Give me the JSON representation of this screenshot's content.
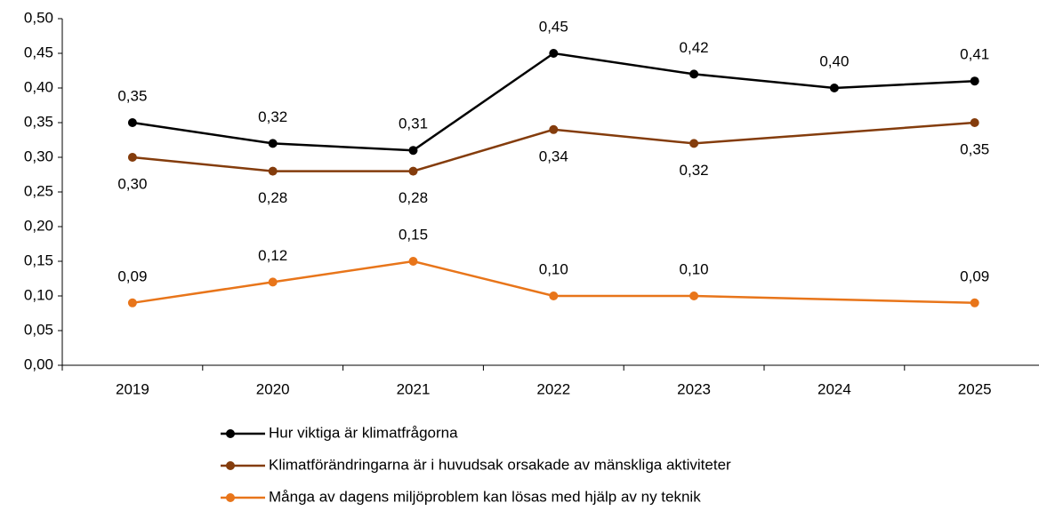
{
  "chart_data": {
    "type": "line",
    "x": [
      2019,
      2020,
      2021,
      2022,
      2023,
      2024,
      2025
    ],
    "ylim": [
      0,
      0.5
    ],
    "yticks": [
      {
        "value": 0,
        "label": "0,00"
      },
      {
        "value": 0.05,
        "label": "0,05"
      },
      {
        "value": 0.1,
        "label": "0,10"
      },
      {
        "value": 0.15,
        "label": "0,15"
      },
      {
        "value": 0.2,
        "label": "0,20"
      },
      {
        "value": 0.25,
        "label": "0,25"
      },
      {
        "value": 0.3,
        "label": "0,30"
      },
      {
        "value": 0.35,
        "label": "0,35"
      },
      {
        "value": 0.4,
        "label": "0,40"
      },
      {
        "value": 0.45,
        "label": "0,45"
      },
      {
        "value": 0.5,
        "label": "0,50"
      }
    ],
    "legend": "bottom",
    "series": [
      {
        "name": "Hur viktiga är klimatfrågorna",
        "color": "#000000",
        "label_position": "above",
        "x": [
          2019,
          2020,
          2021,
          2022,
          2023,
          2024,
          2025
        ],
        "values": [
          0.35,
          0.32,
          0.31,
          0.45,
          0.42,
          0.4,
          0.41
        ],
        "value_labels": [
          "0,35",
          "0,32",
          "0,31",
          "0,45",
          "0,42",
          "0,40",
          "0,41"
        ]
      },
      {
        "name": "Klimatförändringarna är i huvudsak orsakade av mänskliga aktiviteter",
        "color": "#843c0c",
        "label_position": "below",
        "x": [
          2019,
          2020,
          2021,
          2022,
          2023,
          2025
        ],
        "values": [
          0.3,
          0.28,
          0.28,
          0.34,
          0.32,
          0.35
        ],
        "value_labels": [
          "0,30",
          "0,28",
          "0,28",
          "0,34",
          "0,32",
          "0,35"
        ]
      },
      {
        "name": "Många av dagens miljöproblem kan lösas med hjälp av ny teknik",
        "color": "#e8751a",
        "label_position": "above",
        "x": [
          2019,
          2020,
          2021,
          2022,
          2023,
          2025
        ],
        "values": [
          0.09,
          0.12,
          0.15,
          0.1,
          0.1,
          0.09
        ],
        "value_labels": [
          "0,09",
          "0,12",
          "0,15",
          "0,10",
          "0,10",
          "0,09"
        ]
      }
    ]
  }
}
